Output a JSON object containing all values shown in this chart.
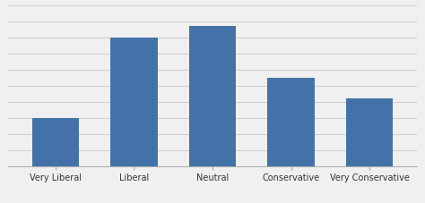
{
  "categories": [
    "Very Liberal",
    "Liberal",
    "Neutral",
    "Conservative",
    "Very Conservative"
  ],
  "values": [
    30,
    80,
    87,
    55,
    42
  ],
  "bar_color": "#4472a8",
  "ylim": [
    0,
    100
  ],
  "background_color": "#f0f0f0",
  "grid_color": "#d0d0d0",
  "tick_fontsize": 7.0,
  "bar_width": 0.6,
  "num_gridlines": 10
}
